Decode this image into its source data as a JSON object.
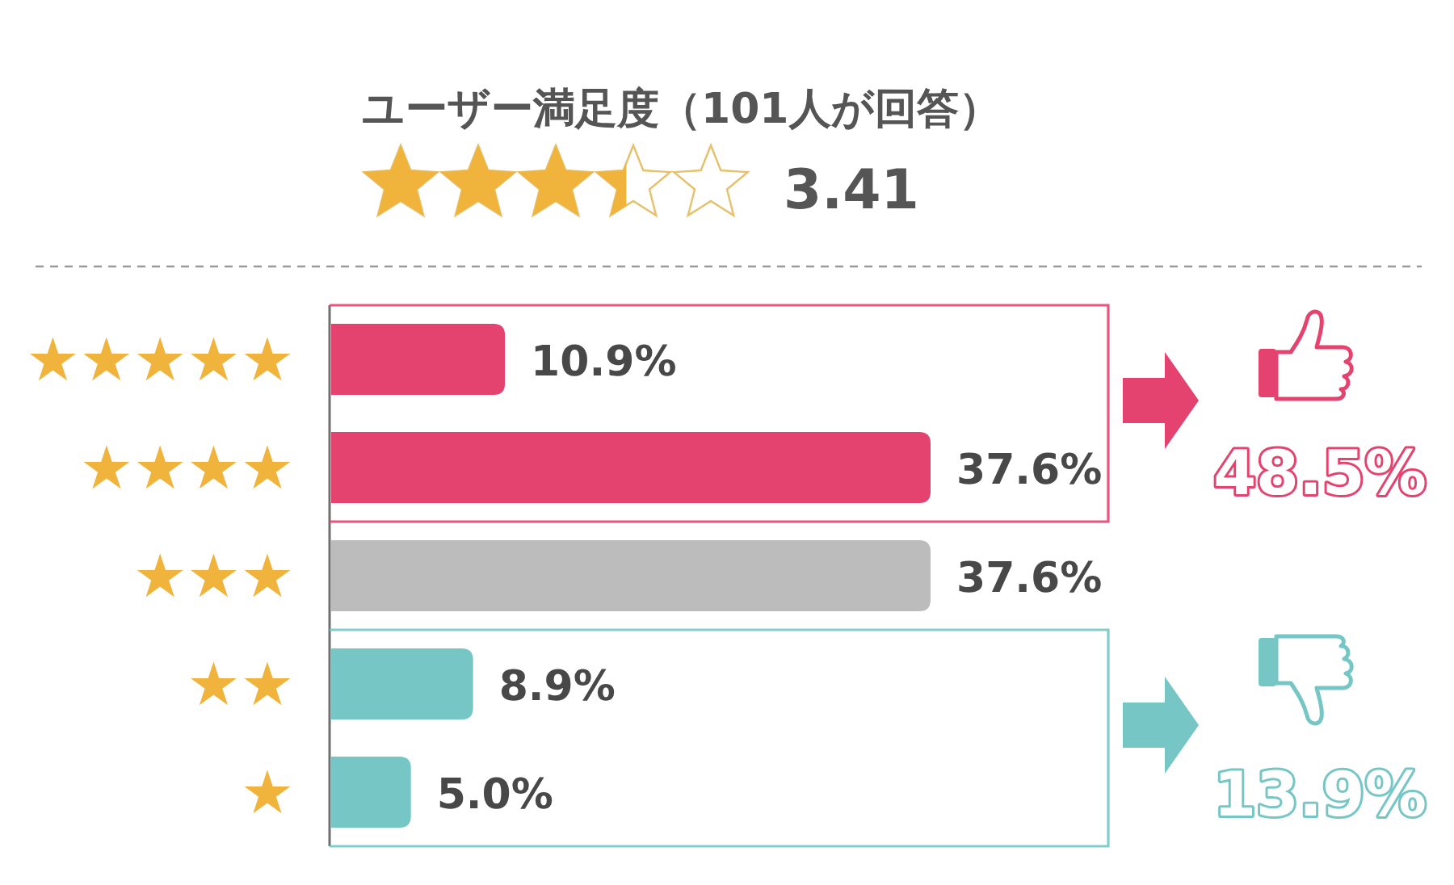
{
  "chart_data": {
    "type": "bar",
    "orientation": "horizontal",
    "title": "ユーザー満足度（101人が回答）",
    "subtitle": "3.41",
    "categories": [
      "★★★★★",
      "★★★★",
      "★★★",
      "★★",
      "★"
    ],
    "values": [
      10.9,
      37.6,
      37.6,
      8.9,
      5.0
    ],
    "value_labels": [
      "10.9%",
      "37.6%",
      "37.6%",
      "8.9%",
      "5.0%"
    ],
    "colors": [
      "#e5436f",
      "#e5436f",
      "#bcbcbc",
      "#76c6c6",
      "#76c6c6"
    ],
    "annotations": [
      "48.5%",
      "13.9%"
    ]
  }
}
